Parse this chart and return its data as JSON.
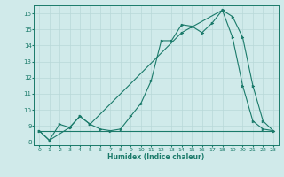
{
  "xlabel": "Humidex (Indice chaleur)",
  "xlim": [
    -0.5,
    23.5
  ],
  "ylim": [
    7.8,
    16.5
  ],
  "yticks": [
    8,
    9,
    10,
    11,
    12,
    13,
    14,
    15,
    16
  ],
  "xticks": [
    0,
    1,
    2,
    3,
    4,
    5,
    6,
    7,
    8,
    9,
    10,
    11,
    12,
    13,
    14,
    15,
    16,
    17,
    18,
    19,
    20,
    21,
    22,
    23
  ],
  "line_color": "#1a7a6a",
  "bg_color": "#d0eaea",
  "grid_color": "#b8d8d8",
  "line1_x": [
    0,
    1,
    2,
    3,
    4,
    5,
    6,
    7,
    8,
    9,
    10,
    11,
    12,
    13,
    14,
    15,
    16,
    17,
    18,
    19,
    20,
    21,
    22,
    23
  ],
  "line1_y": [
    8.7,
    8.1,
    9.1,
    8.9,
    9.6,
    9.1,
    8.8,
    8.7,
    8.8,
    9.6,
    10.4,
    11.8,
    14.3,
    14.3,
    15.3,
    15.2,
    14.8,
    15.4,
    16.2,
    14.5,
    11.5,
    9.3,
    8.8,
    8.7
  ],
  "line2_x": [
    0,
    23
  ],
  "line2_y": [
    8.7,
    8.7
  ],
  "line3_x": [
    0,
    1,
    3,
    4,
    5,
    14,
    18,
    19,
    20,
    21,
    22,
    23
  ],
  "line3_y": [
    8.7,
    8.1,
    8.9,
    9.6,
    9.1,
    14.8,
    16.2,
    15.8,
    14.5,
    11.5,
    9.3,
    8.7
  ]
}
